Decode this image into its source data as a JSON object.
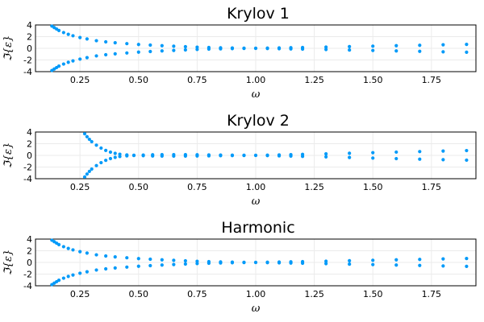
{
  "chart_data": [
    {
      "type": "scatter",
      "title": "Krylov 1",
      "xlabel": "ω",
      "ylabel": "ℑ{ε}",
      "xlim": [
        0.06,
        1.94
      ],
      "ylim": [
        -4,
        4
      ],
      "xticks": [
        0.25,
        0.5,
        0.75,
        1.0,
        1.25,
        1.5,
        1.75
      ],
      "xtick_labels": [
        "0.25",
        "0.50",
        "0.75",
        "1.00",
        "1.25",
        "1.50",
        "1.75"
      ],
      "yticks": [
        -4,
        -2,
        0,
        2,
        4
      ],
      "ytick_labels": [
        "-4",
        "-2",
        "0",
        "2",
        "4"
      ],
      "grid": true,
      "legend": "none",
      "color": "#009af9",
      "series": [
        {
          "x": [
            0.13,
            0.14,
            0.15,
            0.16,
            0.18,
            0.2,
            0.22,
            0.25,
            0.28,
            0.32,
            0.36,
            0.4,
            0.45,
            0.5,
            0.55,
            0.6,
            0.65,
            0.7,
            0.75,
            0.8,
            0.85,
            0.9,
            0.95,
            1.0,
            1.05,
            1.1,
            1.15,
            1.2,
            1.3,
            1.4,
            1.5,
            1.6,
            1.7,
            1.8,
            1.9
          ],
          "y": [
            3.8,
            3.55,
            3.3,
            3.05,
            2.7,
            2.4,
            2.15,
            1.85,
            1.6,
            1.3,
            1.1,
            0.95,
            0.8,
            0.66,
            0.55,
            0.45,
            0.36,
            0.28,
            0.2,
            0.14,
            0.09,
            0.05,
            0.02,
            0.0,
            -0.03,
            -0.07,
            -0.1,
            -0.14,
            -0.21,
            -0.29,
            -0.37,
            -0.45,
            -0.52,
            -0.6,
            -0.67
          ]
        },
        {
          "x": [
            0.13,
            0.14,
            0.15,
            0.16,
            0.18,
            0.2,
            0.22,
            0.25,
            0.28,
            0.32,
            0.36,
            0.4,
            0.45,
            0.5,
            0.55,
            0.6,
            0.65,
            0.7,
            0.75,
            0.8,
            0.85,
            0.9,
            0.95,
            1.0,
            1.05,
            1.1,
            1.15,
            1.2,
            1.3,
            1.4,
            1.5,
            1.6,
            1.7,
            1.8,
            1.9
          ],
          "y": [
            -3.8,
            -3.55,
            -3.3,
            -3.05,
            -2.7,
            -2.4,
            -2.15,
            -1.85,
            -1.6,
            -1.3,
            -1.1,
            -0.95,
            -0.8,
            -0.66,
            -0.55,
            -0.45,
            -0.36,
            -0.28,
            -0.2,
            -0.14,
            -0.09,
            -0.05,
            -0.02,
            0.0,
            0.03,
            0.07,
            0.1,
            0.14,
            0.21,
            0.29,
            0.37,
            0.45,
            0.52,
            0.6,
            0.67
          ]
        }
      ]
    },
    {
      "type": "scatter",
      "title": "Krylov 2",
      "xlabel": "ω",
      "ylabel": "ℑ{ε}",
      "xlim": [
        0.06,
        1.94
      ],
      "ylim": [
        -4,
        4
      ],
      "xticks": [
        0.25,
        0.5,
        0.75,
        1.0,
        1.25,
        1.5,
        1.75
      ],
      "xtick_labels": [
        "0.25",
        "0.50",
        "0.75",
        "1.00",
        "1.25",
        "1.50",
        "1.75"
      ],
      "yticks": [
        -4,
        -2,
        0,
        2,
        4
      ],
      "ytick_labels": [
        "-4",
        "-2",
        "0",
        "2",
        "4"
      ],
      "grid": true,
      "legend": "none",
      "color": "#009af9",
      "series": [
        {
          "x": [
            0.27,
            0.28,
            0.29,
            0.3,
            0.32,
            0.34,
            0.36,
            0.38,
            0.4,
            0.42,
            0.45,
            0.48,
            0.52,
            0.56,
            0.6,
            0.65,
            0.7,
            0.75,
            0.8,
            0.85,
            0.9,
            0.95,
            1.0,
            1.05,
            1.1,
            1.15,
            1.2,
            1.3,
            1.4,
            1.5,
            1.6,
            1.7,
            1.8,
            1.9
          ],
          "y": [
            3.7,
            3.2,
            2.75,
            2.35,
            1.75,
            1.25,
            0.85,
            0.55,
            0.35,
            0.2,
            0.08,
            0.02,
            -0.06,
            -0.1,
            -0.12,
            -0.13,
            -0.12,
            -0.1,
            -0.08,
            -0.06,
            -0.04,
            -0.02,
            0.0,
            0.04,
            0.08,
            0.12,
            0.17,
            0.26,
            0.36,
            0.46,
            0.56,
            0.65,
            0.74,
            0.82
          ]
        },
        {
          "x": [
            0.27,
            0.28,
            0.29,
            0.3,
            0.32,
            0.34,
            0.36,
            0.38,
            0.4,
            0.42,
            0.45,
            0.48,
            0.52,
            0.56,
            0.6,
            0.65,
            0.7,
            0.75,
            0.8,
            0.85,
            0.9,
            0.95,
            1.0,
            1.05,
            1.1,
            1.15,
            1.2,
            1.3,
            1.4,
            1.5,
            1.6,
            1.7,
            1.8,
            1.9
          ],
          "y": [
            -3.7,
            -3.2,
            -2.75,
            -2.35,
            -1.75,
            -1.25,
            -0.85,
            -0.55,
            -0.35,
            -0.2,
            -0.08,
            -0.02,
            0.06,
            0.1,
            0.12,
            0.13,
            0.12,
            0.1,
            0.08,
            0.06,
            0.04,
            0.02,
            0.0,
            -0.04,
            -0.08,
            -0.12,
            -0.17,
            -0.26,
            -0.36,
            -0.46,
            -0.56,
            -0.65,
            -0.74,
            -0.82
          ]
        }
      ]
    },
    {
      "type": "scatter",
      "title": "Harmonic",
      "xlabel": "ω",
      "ylabel": "ℑ{ε}",
      "xlim": [
        0.06,
        1.94
      ],
      "ylim": [
        -4,
        4
      ],
      "xticks": [
        0.25,
        0.5,
        0.75,
        1.0,
        1.25,
        1.5,
        1.75
      ],
      "xtick_labels": [
        "0.25",
        "0.50",
        "0.75",
        "1.00",
        "1.25",
        "1.50",
        "1.75"
      ],
      "yticks": [
        -4,
        -2,
        0,
        2,
        4
      ],
      "ytick_labels": [
        "-4",
        "-2",
        "0",
        "2",
        "4"
      ],
      "grid": true,
      "legend": "none",
      "color": "#009af9",
      "series": [
        {
          "x": [
            0.13,
            0.14,
            0.15,
            0.16,
            0.18,
            0.2,
            0.22,
            0.25,
            0.28,
            0.32,
            0.36,
            0.4,
            0.45,
            0.5,
            0.55,
            0.6,
            0.65,
            0.7,
            0.75,
            0.8,
            0.85,
            0.9,
            0.95,
            1.0,
            1.05,
            1.1,
            1.15,
            1.2,
            1.3,
            1.4,
            1.5,
            1.6,
            1.7,
            1.8,
            1.9
          ],
          "y": [
            3.8,
            3.55,
            3.3,
            3.05,
            2.7,
            2.4,
            2.15,
            1.85,
            1.6,
            1.3,
            1.1,
            0.95,
            0.8,
            0.66,
            0.55,
            0.45,
            0.36,
            0.28,
            0.2,
            0.14,
            0.09,
            0.05,
            0.02,
            0.0,
            -0.03,
            -0.07,
            -0.1,
            -0.14,
            -0.21,
            -0.29,
            -0.37,
            -0.45,
            -0.52,
            -0.6,
            -0.67
          ]
        },
        {
          "x": [
            0.13,
            0.14,
            0.15,
            0.16,
            0.18,
            0.2,
            0.22,
            0.25,
            0.28,
            0.32,
            0.36,
            0.4,
            0.45,
            0.5,
            0.55,
            0.6,
            0.65,
            0.7,
            0.75,
            0.8,
            0.85,
            0.9,
            0.95,
            1.0,
            1.05,
            1.1,
            1.15,
            1.2,
            1.3,
            1.4,
            1.5,
            1.6,
            1.7,
            1.8,
            1.9
          ],
          "y": [
            -3.8,
            -3.55,
            -3.3,
            -3.05,
            -2.7,
            -2.4,
            -2.15,
            -1.85,
            -1.6,
            -1.3,
            -1.1,
            -0.95,
            -0.8,
            -0.66,
            -0.55,
            -0.45,
            -0.36,
            -0.28,
            -0.2,
            -0.14,
            -0.09,
            -0.05,
            -0.02,
            0.0,
            0.03,
            0.07,
            0.1,
            0.14,
            0.21,
            0.29,
            0.37,
            0.45,
            0.52,
            0.6,
            0.67
          ]
        }
      ]
    }
  ]
}
